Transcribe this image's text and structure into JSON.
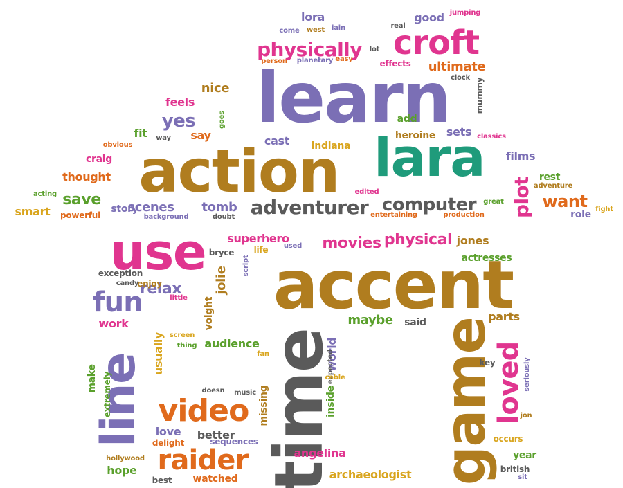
{
  "palette": {
    "purple": "#7b6fb5",
    "pink": "#e0358f",
    "brown": "#b07d1f",
    "orange": "#e06a1c",
    "green": "#5aa02c",
    "teal": "#1f9b7b",
    "gray": "#5a5a5a",
    "gold": "#d9a51e"
  },
  "words": [
    {
      "text": "learn",
      "color": "purple"
    },
    {
      "text": "action",
      "color": "brown"
    },
    {
      "text": "lara",
      "color": "teal"
    },
    {
      "text": "accent",
      "color": "brown"
    },
    {
      "text": "use",
      "color": "pink"
    },
    {
      "text": "time",
      "color": "gray"
    },
    {
      "text": "game",
      "color": "brown"
    },
    {
      "text": "line",
      "color": "purple"
    },
    {
      "text": "croft",
      "color": "pink"
    },
    {
      "text": "video",
      "color": "orange"
    },
    {
      "text": "raider",
      "color": "orange"
    },
    {
      "text": "loved",
      "color": "pink"
    },
    {
      "text": "fun",
      "color": "purple"
    },
    {
      "text": "adventurer",
      "color": "gray"
    },
    {
      "text": "computer",
      "color": "gray"
    },
    {
      "text": "physically",
      "color": "pink"
    },
    {
      "text": "plot",
      "color": "pink"
    },
    {
      "text": "want",
      "color": "orange"
    },
    {
      "text": "movies",
      "color": "pink"
    },
    {
      "text": "physical",
      "color": "pink"
    },
    {
      "text": "ultimate",
      "color": "orange"
    },
    {
      "text": "yes",
      "color": "purple"
    },
    {
      "text": "save",
      "color": "green"
    },
    {
      "text": "scenes",
      "color": "purple"
    },
    {
      "text": "tomb",
      "color": "purple"
    },
    {
      "text": "relax",
      "color": "purple"
    },
    {
      "text": "superhero",
      "color": "pink"
    },
    {
      "text": "maybe",
      "color": "green"
    },
    {
      "text": "nice",
      "color": "brown"
    },
    {
      "text": "feels",
      "color": "pink"
    },
    {
      "text": "thought",
      "color": "orange"
    },
    {
      "text": "story",
      "color": "purple"
    },
    {
      "text": "smart",
      "color": "gold"
    },
    {
      "text": "craig",
      "color": "pink"
    },
    {
      "text": "fit",
      "color": "green"
    },
    {
      "text": "say",
      "color": "orange"
    },
    {
      "text": "cast",
      "color": "purple"
    },
    {
      "text": "indiana",
      "color": "gold"
    },
    {
      "text": "heroine",
      "color": "brown"
    },
    {
      "text": "add",
      "color": "green"
    },
    {
      "text": "sets",
      "color": "purple"
    },
    {
      "text": "films",
      "color": "purple"
    },
    {
      "text": "rest",
      "color": "green"
    },
    {
      "text": "role",
      "color": "purple"
    },
    {
      "text": "good",
      "color": "purple"
    },
    {
      "text": "lora",
      "color": "purple"
    },
    {
      "text": "jones",
      "color": "brown"
    },
    {
      "text": "actresses",
      "color": "green"
    },
    {
      "text": "parts",
      "color": "brown"
    },
    {
      "text": "said",
      "color": "gray"
    },
    {
      "text": "jolie",
      "color": "brown"
    },
    {
      "text": "voight",
      "color": "brown"
    },
    {
      "text": "audience",
      "color": "green"
    },
    {
      "text": "world",
      "color": "purple"
    },
    {
      "text": "inside",
      "color": "green"
    },
    {
      "text": "missing",
      "color": "brown"
    },
    {
      "text": "angelina",
      "color": "pink"
    },
    {
      "text": "archaeologist",
      "color": "gold"
    },
    {
      "text": "year",
      "color": "green"
    },
    {
      "text": "british",
      "color": "gray"
    },
    {
      "text": "occurs",
      "color": "gold"
    },
    {
      "text": "key",
      "color": "gray"
    },
    {
      "text": "work",
      "color": "pink"
    },
    {
      "text": "usually",
      "color": "gold"
    },
    {
      "text": "make",
      "color": "green"
    },
    {
      "text": "extremely",
      "color": "green"
    },
    {
      "text": "love",
      "color": "purple"
    },
    {
      "text": "better",
      "color": "gray"
    },
    {
      "text": "delight",
      "color": "orange"
    },
    {
      "text": "hope",
      "color": "green"
    },
    {
      "text": "hollywood",
      "color": "brown"
    },
    {
      "text": "best",
      "color": "gray"
    },
    {
      "text": "watched",
      "color": "orange"
    },
    {
      "text": "sequences",
      "color": "purple"
    },
    {
      "text": "doesn",
      "color": "gray"
    },
    {
      "text": "music",
      "color": "gray"
    },
    {
      "text": "fan",
      "color": "gold"
    },
    {
      "text": "expected",
      "color": "gray"
    },
    {
      "text": "cable",
      "color": "gold"
    },
    {
      "text": "seriously",
      "color": "purple"
    },
    {
      "text": "jon",
      "color": "brown"
    },
    {
      "text": "sit",
      "color": "purple"
    },
    {
      "text": "screen",
      "color": "gold"
    },
    {
      "text": "thing",
      "color": "green"
    },
    {
      "text": "little",
      "color": "pink"
    },
    {
      "text": "enjoy",
      "color": "brown"
    },
    {
      "text": "candy",
      "color": "gray"
    },
    {
      "text": "exception",
      "color": "gray"
    },
    {
      "text": "bryce",
      "color": "gray"
    },
    {
      "text": "life",
      "color": "gold"
    },
    {
      "text": "used",
      "color": "purple"
    },
    {
      "text": "script",
      "color": "purple"
    },
    {
      "text": "acting",
      "color": "green"
    },
    {
      "text": "powerful",
      "color": "orange"
    },
    {
      "text": "background",
      "color": "purple"
    },
    {
      "text": "doubt",
      "color": "gray"
    },
    {
      "text": "edited",
      "color": "pink"
    },
    {
      "text": "entertaining",
      "color": "orange"
    },
    {
      "text": "production",
      "color": "orange"
    },
    {
      "text": "great",
      "color": "green"
    },
    {
      "text": "adventure",
      "color": "brown"
    },
    {
      "text": "fight",
      "color": "gold"
    },
    {
      "text": "obvious",
      "color": "orange"
    },
    {
      "text": "way",
      "color": "gray"
    },
    {
      "text": "goes",
      "color": "green"
    },
    {
      "text": "classics",
      "color": "pink"
    },
    {
      "text": "mummy",
      "color": "gray"
    },
    {
      "text": "clock",
      "color": "gray"
    },
    {
      "text": "effects",
      "color": "pink"
    },
    {
      "text": "real",
      "color": "gray"
    },
    {
      "text": "lot",
      "color": "gray"
    },
    {
      "text": "person",
      "color": "orange"
    },
    {
      "text": "planetary",
      "color": "purple"
    },
    {
      "text": "easy",
      "color": "orange"
    },
    {
      "text": "come",
      "color": "purple"
    },
    {
      "text": "west",
      "color": "brown"
    },
    {
      "text": "iain",
      "color": "purple"
    },
    {
      "text": "jumping",
      "color": "pink"
    }
  ]
}
